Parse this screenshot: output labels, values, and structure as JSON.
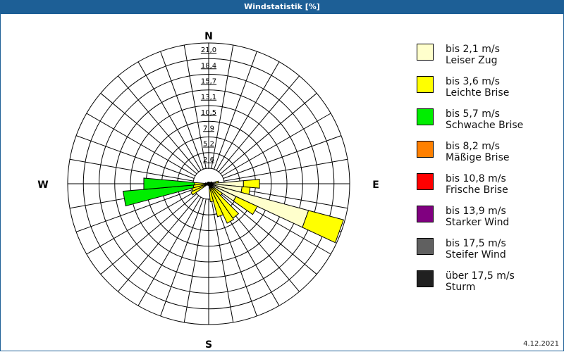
{
  "window": {
    "title": "Windstatistik [%]"
  },
  "footer": {
    "date": "4.12.2021"
  },
  "compass": {
    "north": "N",
    "east": "E",
    "south": "S",
    "west": "W"
  },
  "legend": [
    {
      "range": "bis 2,1 m/s",
      "name": "Leiser Zug",
      "color": "#ffffcc"
    },
    {
      "range": "bis 3,6 m/s",
      "name": "Leichte Brise",
      "color": "#ffff00"
    },
    {
      "range": "bis 5,7 m/s",
      "name": "Schwache Brise",
      "color": "#00ee00"
    },
    {
      "range": "bis 8,2 m/s",
      "name": "Mäßige Brise",
      "color": "#ff8000"
    },
    {
      "range": "bis 10,8 m/s",
      "name": "Frische Brise",
      "color": "#ff0000"
    },
    {
      "range": "bis 13,9 m/s",
      "name": "Starker Wind",
      "color": "#800080"
    },
    {
      "range": "bis 17,5 m/s",
      "name": "Steifer Wind",
      "color": "#606060"
    },
    {
      "range": "über 17,5 m/s",
      "name": "Sturm",
      "color": "#202020"
    }
  ],
  "chart_data": {
    "type": "wind-rose",
    "title": "Windstatistik [%]",
    "unit": "%",
    "radial_ticks": [
      "2,6",
      "5,2",
      "7,9",
      "10,5",
      "13,1",
      "15,7",
      "18,4",
      "21,0"
    ],
    "radial_max": 21.0,
    "sector_width_deg": 10,
    "series_order": [
      "bis 2,1 m/s",
      "bis 3,6 m/s",
      "bis 5,7 m/s"
    ],
    "sectors": [
      {
        "dir": 80,
        "values": [
          1.0,
          0.5,
          0
        ]
      },
      {
        "dir": 90,
        "values": [
          5.2,
          2.4,
          0
        ]
      },
      {
        "dir": 100,
        "values": [
          5.0,
          1.2,
          0
        ]
      },
      {
        "dir": 110,
        "values": [
          15.4,
          5.4,
          0
        ]
      },
      {
        "dir": 120,
        "values": [
          4.5,
          3.5,
          0
        ]
      },
      {
        "dir": 130,
        "values": [
          1.0,
          1.5,
          0
        ]
      },
      {
        "dir": 140,
        "values": [
          0.8,
          5.5,
          0
        ]
      },
      {
        "dir": 150,
        "values": [
          0.5,
          6.0,
          0
        ]
      },
      {
        "dir": 160,
        "values": [
          0.3,
          4.8,
          0
        ]
      },
      {
        "dir": 170,
        "values": [
          0.2,
          2.5,
          0
        ]
      },
      {
        "dir": 240,
        "values": [
          0.3,
          2.6,
          0
        ]
      },
      {
        "dir": 250,
        "values": [
          0.3,
          2.3,
          0
        ]
      },
      {
        "dir": 260,
        "values": [
          0.5,
          1.8,
          10.5
        ]
      },
      {
        "dir": 270,
        "values": [
          0.3,
          1.8,
          7.6
        ]
      },
      {
        "dir": 280,
        "values": [
          0.2,
          0.3,
          0
        ]
      },
      {
        "dir": 60,
        "values": [
          0.3,
          0.2,
          0
        ]
      },
      {
        "dir": 70,
        "values": [
          0.3,
          0.2,
          0
        ]
      }
    ]
  }
}
